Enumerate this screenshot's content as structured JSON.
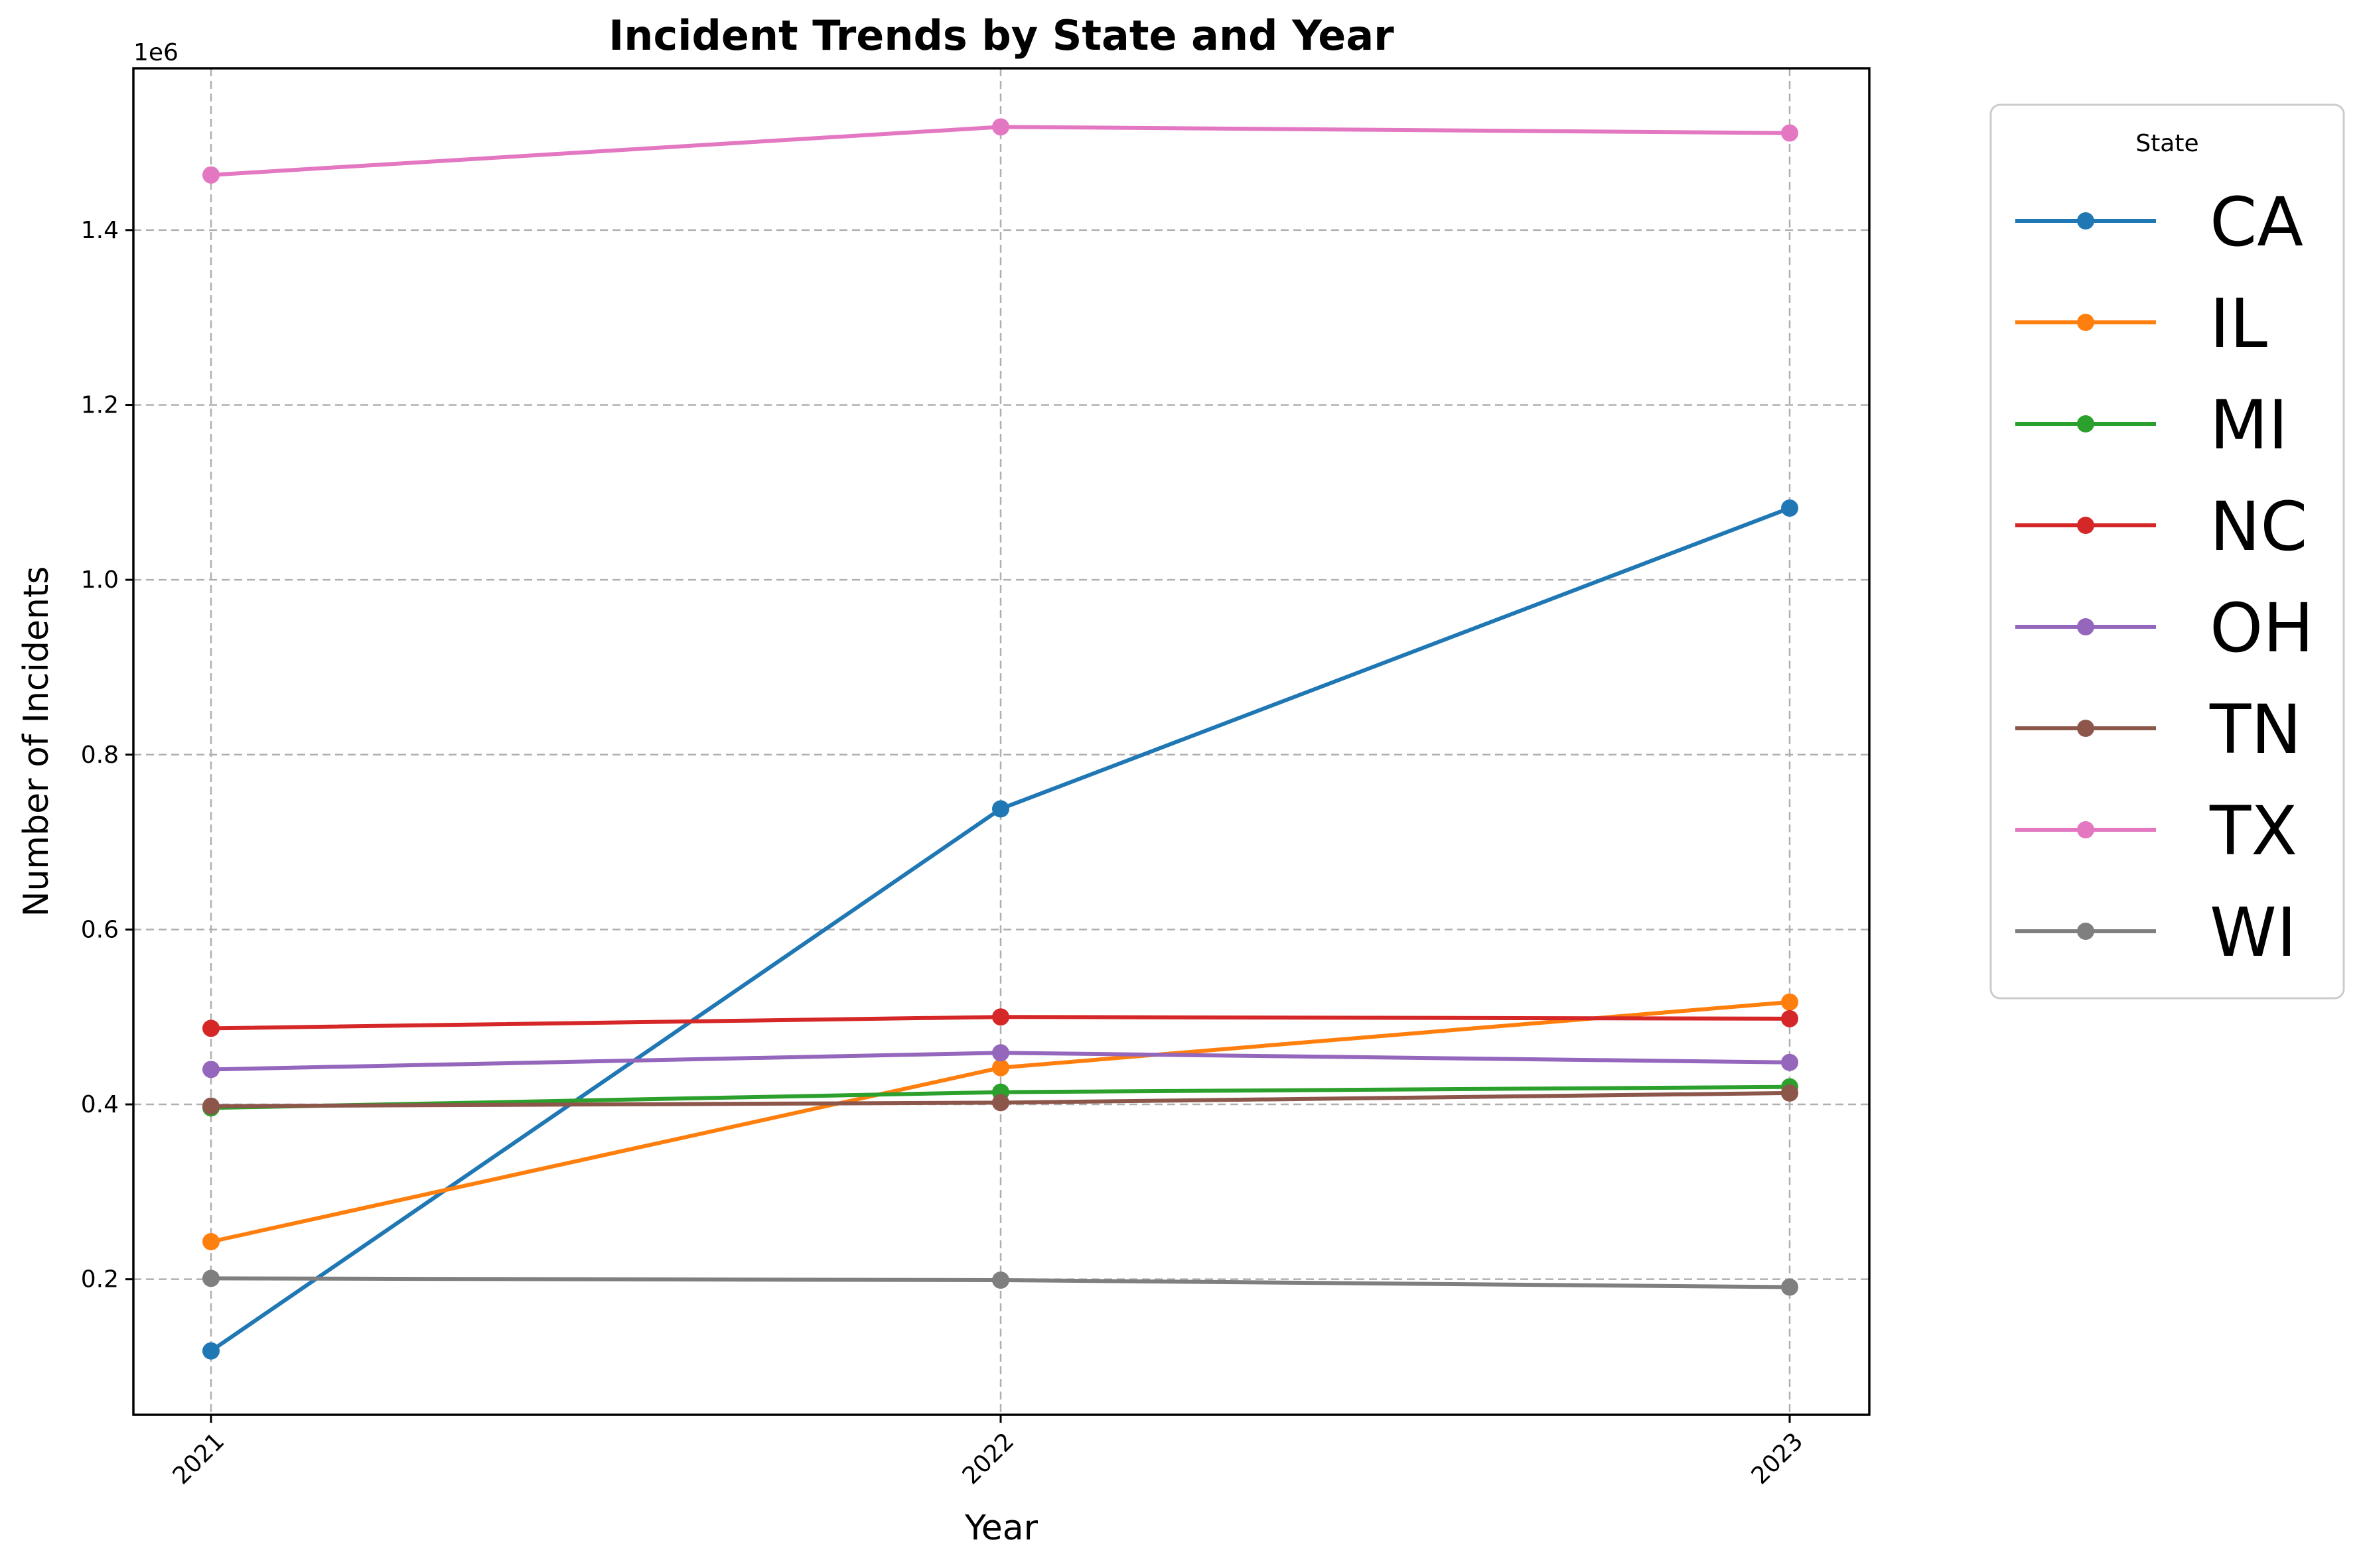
{
  "chart_data": {
    "type": "line",
    "title": "Incident Trends by State and Year",
    "xlabel": "Year",
    "ylabel": "Number of Incidents",
    "y_offset_label": "1e6",
    "x": [
      "2021",
      "2022",
      "2023"
    ],
    "y_ticks": [
      "0.2",
      "0.4",
      "0.6",
      "0.8",
      "1.0",
      "1.2",
      "1.4"
    ],
    "y_tick_values": [
      0.2,
      0.4,
      0.6,
      0.8,
      1.0,
      1.2,
      1.4
    ],
    "ylim": [
      0.045,
      1.585
    ],
    "y_scale": 1000000,
    "grid": true,
    "legend_title": "State",
    "legend_position": "outside-right",
    "series": [
      {
        "name": "CA",
        "color": "#1f77b4",
        "values": [
          118000,
          738000,
          1082000
        ]
      },
      {
        "name": "IL",
        "color": "#ff7f0e",
        "values": [
          243000,
          442000,
          517000
        ]
      },
      {
        "name": "MI",
        "color": "#2ca02c",
        "values": [
          396000,
          414000,
          420000
        ]
      },
      {
        "name": "NC",
        "color": "#d62728",
        "values": [
          487000,
          500000,
          498000
        ]
      },
      {
        "name": "OH",
        "color": "#9467bd",
        "values": [
          440000,
          459000,
          448000
        ]
      },
      {
        "name": "TN",
        "color": "#8c564b",
        "values": [
          398000,
          402000,
          413000
        ]
      },
      {
        "name": "TX",
        "color": "#e377c2",
        "values": [
          1463000,
          1518000,
          1511000
        ]
      },
      {
        "name": "WI",
        "color": "#7f7f7f",
        "values": [
          201000,
          199000,
          191000
        ]
      }
    ]
  }
}
